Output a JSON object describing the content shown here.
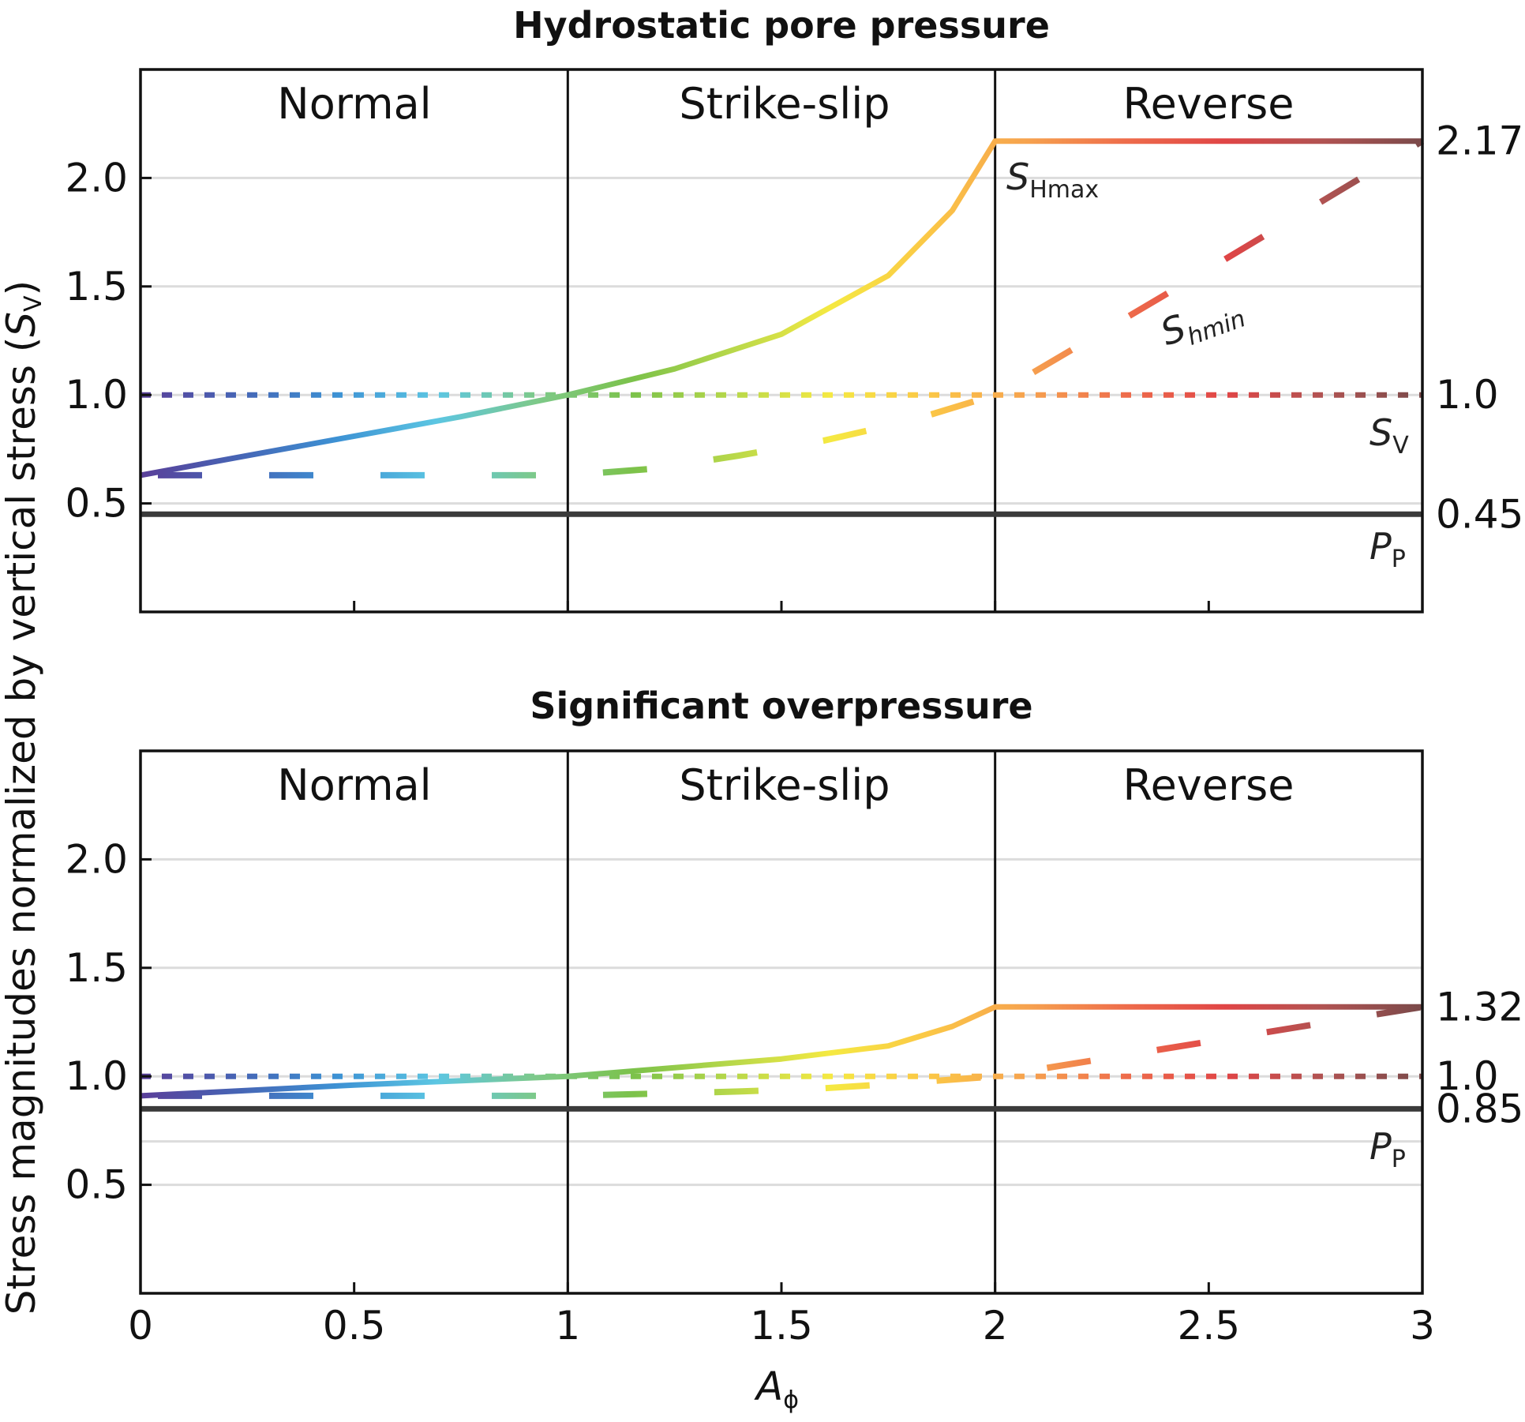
{
  "figure": {
    "ylabel_prefix": "Stress magnitudes normalized by vertical stress (",
    "ylabel_var": "S",
    "ylabel_sub": "V",
    "ylabel_suffix": ")",
    "xlabel_var": "A",
    "xlabel_sub": "ϕ"
  },
  "colors": [
    "#5a3f99",
    "#4665b5",
    "#3d92d4",
    "#5cc6e2",
    "#7dc98a",
    "#7cc24a",
    "#b8d84a",
    "#f5e942",
    "#fbc746",
    "#f6a24e",
    "#ee6c4b",
    "#e04546",
    "#b05352",
    "#7a4a4a"
  ],
  "chart_data": [
    {
      "type": "line",
      "title": "Hydrostatic pore pressure",
      "xlim": [
        0,
        3
      ],
      "ylim": [
        0,
        2.5
      ],
      "x_ticks": [
        {
          "v": 0,
          "label": "0"
        },
        {
          "v": 0.5,
          "label": "0.5"
        },
        {
          "v": 1,
          "label": "1"
        },
        {
          "v": 1.5,
          "label": "1.5"
        },
        {
          "v": 2,
          "label": "2"
        },
        {
          "v": 2.5,
          "label": "2.5"
        },
        {
          "v": 3,
          "label": "3"
        }
      ],
      "y_ticks": [
        {
          "v": 0.5,
          "label": "0.5"
        },
        {
          "v": 1.0,
          "label": "1.0"
        },
        {
          "v": 1.5,
          "label": "1.5"
        },
        {
          "v": 2.0,
          "label": "2.0"
        }
      ],
      "grid_y": [
        0.5,
        1.0,
        1.5,
        2.0
      ],
      "regimes": [
        "Normal",
        "Strike-slip",
        "Reverse"
      ],
      "regime_boundaries": [
        1,
        2
      ],
      "right_labels": [
        {
          "v": 2.17,
          "label": "2.17"
        },
        {
          "v": 1.0,
          "label": "1.0"
        },
        {
          "v": 0.45,
          "label": "0.45"
        }
      ],
      "series": [
        {
          "name": "SHmax",
          "label_main": "S",
          "label_sub": "Hmax",
          "style": "solid",
          "x": [
            0,
            0.25,
            0.5,
            0.75,
            1.0,
            1.25,
            1.5,
            1.75,
            1.9,
            2.0,
            2.5,
            3.0
          ],
          "y": [
            0.63,
            0.72,
            0.81,
            0.9,
            1.0,
            1.12,
            1.28,
            1.55,
            1.85,
            2.17,
            2.17,
            2.17
          ]
        },
        {
          "name": "Shmin",
          "label_main": "S",
          "label_sub": "hmin",
          "style": "dashed",
          "x": [
            0,
            0.5,
            1.0,
            1.2,
            1.4,
            1.6,
            1.8,
            2.0,
            2.5,
            3.0
          ],
          "y": [
            0.63,
            0.63,
            0.63,
            0.66,
            0.72,
            0.79,
            0.88,
            1.0,
            1.58,
            2.17
          ]
        },
        {
          "name": "SV",
          "label_main": "S",
          "label_sub": "V",
          "style": "dotted",
          "x": [
            0,
            3
          ],
          "y": [
            1.0,
            1.0
          ]
        },
        {
          "name": "PP",
          "label_main": "P",
          "label_sub": "P",
          "style": "thick",
          "x": [
            0,
            3
          ],
          "y": [
            0.45,
            0.45
          ]
        }
      ]
    },
    {
      "type": "line",
      "title": "Significant overpressure",
      "xlim": [
        0,
        3
      ],
      "ylim": [
        0,
        2.5
      ],
      "x_ticks": [
        {
          "v": 0,
          "label": "0"
        },
        {
          "v": 0.5,
          "label": "0.5"
        },
        {
          "v": 1,
          "label": "1"
        },
        {
          "v": 1.5,
          "label": "1.5"
        },
        {
          "v": 2,
          "label": "2"
        },
        {
          "v": 2.5,
          "label": "2.5"
        },
        {
          "v": 3,
          "label": "3"
        }
      ],
      "y_ticks": [
        {
          "v": 0.5,
          "label": "0.5"
        },
        {
          "v": 1.0,
          "label": "1.0"
        },
        {
          "v": 1.5,
          "label": "1.5"
        },
        {
          "v": 2.0,
          "label": "2.0"
        }
      ],
      "grid_y": [
        0.5,
        0.7,
        1.0,
        1.5,
        2.0
      ],
      "regimes": [
        "Normal",
        "Strike-slip",
        "Reverse"
      ],
      "regime_boundaries": [
        1,
        2
      ],
      "right_labels": [
        {
          "v": 1.32,
          "label": "1.32"
        },
        {
          "v": 1.0,
          "label": "1.0"
        },
        {
          "v": 0.85,
          "label": "0.85"
        }
      ],
      "series": [
        {
          "name": "SHmax",
          "style": "solid",
          "x": [
            0,
            0.25,
            0.5,
            0.75,
            1.0,
            1.25,
            1.5,
            1.75,
            1.9,
            2.0,
            2.5,
            3.0
          ],
          "y": [
            0.91,
            0.935,
            0.96,
            0.98,
            1.0,
            1.04,
            1.08,
            1.14,
            1.23,
            1.32,
            1.32,
            1.32
          ]
        },
        {
          "name": "Shmin",
          "style": "dashed",
          "x": [
            0,
            0.5,
            1.0,
            1.2,
            1.4,
            1.6,
            1.8,
            2.0,
            2.5,
            3.0
          ],
          "y": [
            0.91,
            0.91,
            0.91,
            0.92,
            0.93,
            0.945,
            0.97,
            1.0,
            1.16,
            1.32
          ]
        },
        {
          "name": "SV",
          "label_main": "S",
          "label_sub": "V",
          "style": "dotted",
          "x": [
            0,
            3
          ],
          "y": [
            1.0,
            1.0
          ]
        },
        {
          "name": "PP",
          "label_main": "P",
          "label_sub": "P",
          "style": "thick",
          "x": [
            0,
            3
          ],
          "y": [
            0.85,
            0.85
          ]
        }
      ]
    }
  ]
}
